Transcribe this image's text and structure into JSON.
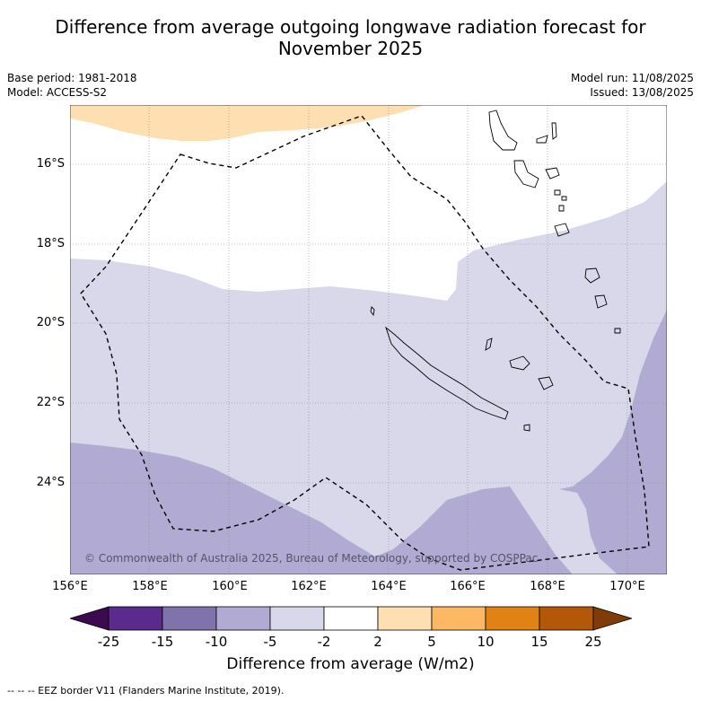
{
  "header": {
    "title_line1": "Difference from average outgoing longwave radiation forecast for",
    "title_line2": "November 2025",
    "base_period": "Base period: 1981-2018",
    "model": "Model: ACCESS-S2",
    "model_run": "Model run: 11/08/2025",
    "issued": "Issued: 13/08/2025"
  },
  "map": {
    "lat_labels": [
      "16°S",
      "18°S",
      "20°S",
      "22°S",
      "24°S"
    ],
    "lon_labels": [
      "156°E",
      "158°E",
      "160°E",
      "162°E",
      "164°E",
      "166°E",
      "168°E",
      "170°E"
    ],
    "copyright": "© Commonwealth of Australia 2025, Bureau of Meteorology, supported by COSPPac",
    "colors": {
      "below_minus2": "#d8d8ea",
      "below_minus5": "#b1aad3",
      "above_2": "#fddfb2",
      "coast": "#000000",
      "eez": "#000000"
    }
  },
  "colorbar": {
    "ticks": [
      "-25",
      "-15",
      "-10",
      "-5",
      "-2",
      "2",
      "5",
      "10",
      "15",
      "25"
    ],
    "colors": [
      "#3b0a4f",
      "#5a2a8c",
      "#8073ac",
      "#b1aad3",
      "#d8d8ea",
      "#ffffff",
      "#fddfb2",
      "#fdb863",
      "#e08214",
      "#b35806",
      "#7f3b08"
    ],
    "label": "Difference from average (W/m2)"
  },
  "footer": {
    "eez_note": "--  --  -- EEZ border V11 (Flanders Marine Institute, 2019)."
  }
}
